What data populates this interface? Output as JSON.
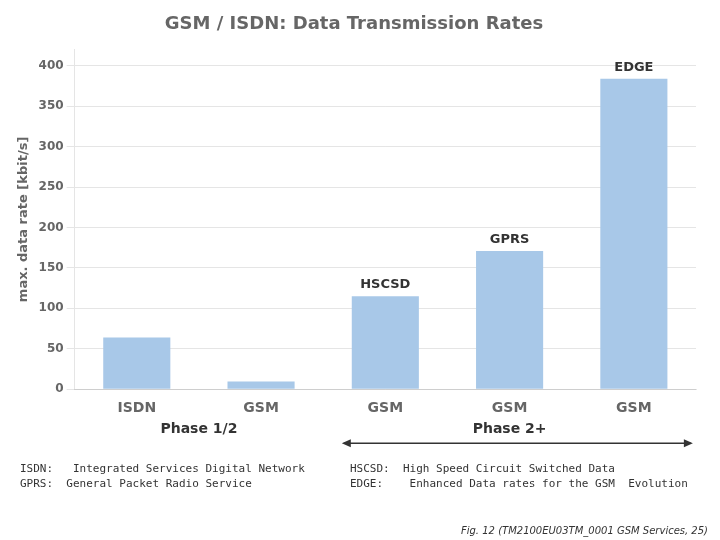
{
  "chart_data": {
    "type": "bar",
    "title": "GSM / ISDN: Data Transmission Rates",
    "ylabel": "max. data rate [kbit/s]",
    "categories": [
      "ISDN",
      "GSM",
      "GSM",
      "GSM",
      "GSM"
    ],
    "values": [
      64,
      9.6,
      115,
      171,
      384
    ],
    "color": "#A8C8E8",
    "ylim": [
      0,
      420
    ],
    "yticks": [
      0,
      50,
      100,
      150,
      200,
      250,
      300,
      350,
      400
    ],
    "grid": true,
    "bar_labels": [
      null,
      null,
      "HSCSD",
      "GPRS",
      "EDGE"
    ],
    "phase_labels": [
      {
        "text": "Phase 1/2",
        "categories": [
          0,
          1
        ]
      },
      {
        "text": "Phase 2+",
        "categories": [
          2,
          3,
          4
        ]
      }
    ],
    "notes": [
      "ISDN:   Integrated Services Digital Network\nGPRS:  General Packet Radio Service",
      "HSCSD:  High Speed Circuit Switched Data\nEDGE:    Enhanced Data rates for the GSM  Evolution"
    ],
    "source": "Fig. 12 (TM2100EU03TM_0001 GSM Services, 25)"
  }
}
